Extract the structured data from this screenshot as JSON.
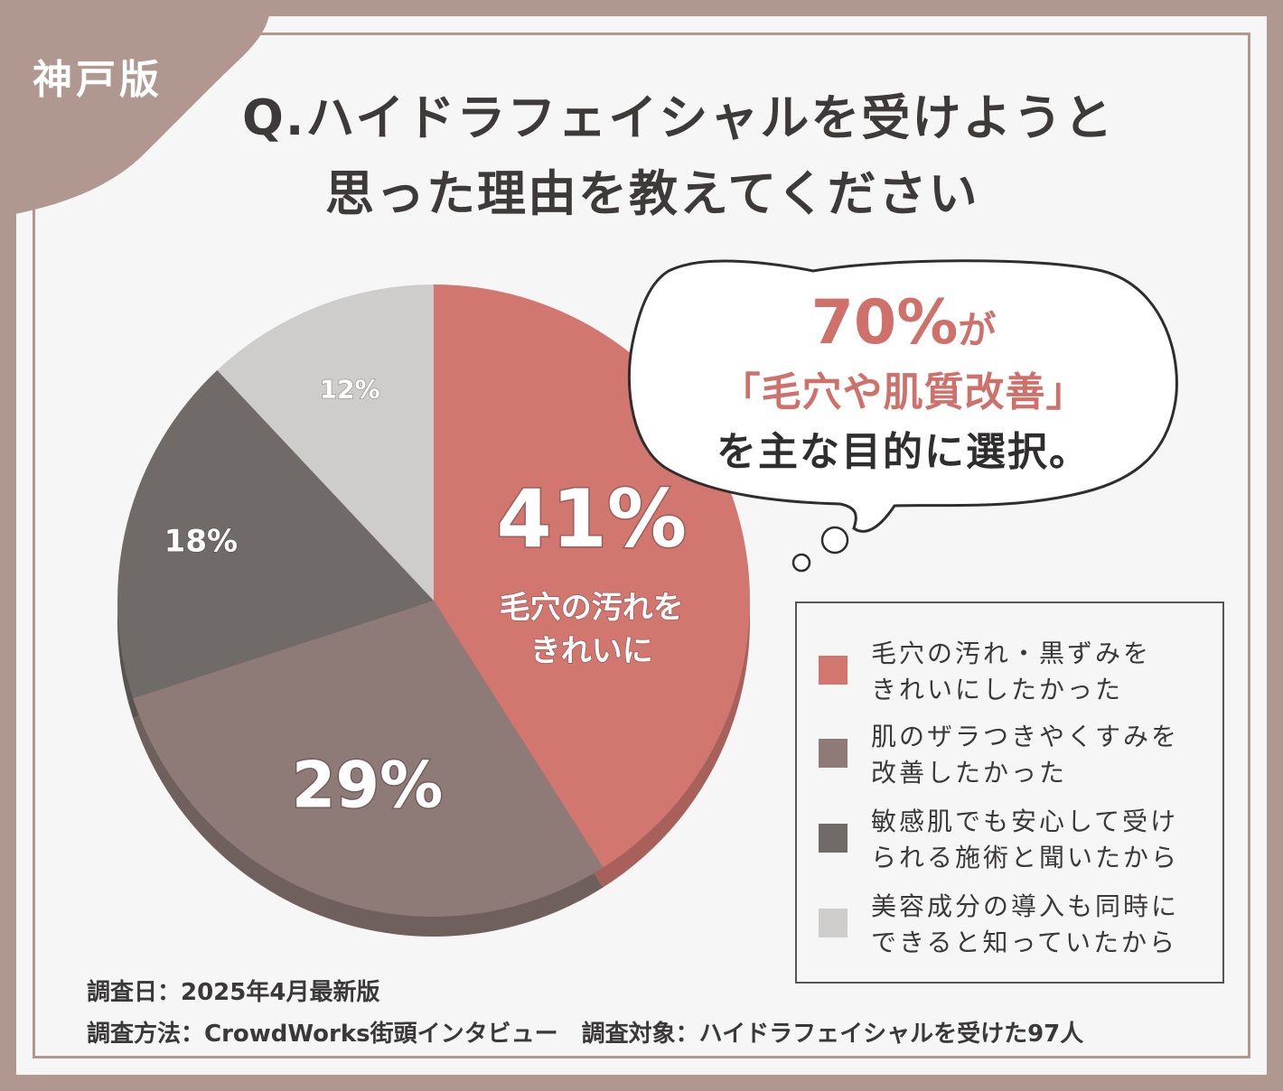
{
  "badge": "神戸版",
  "title": {
    "line1": "Q.ハイドラフェイシャルを受けようと",
    "line2": "思った理由を教えてください"
  },
  "callout": {
    "percent": "70%",
    "particle": "が",
    "highlight": "「毛穴や肌質改善」",
    "rest": "を主な目的に選択。"
  },
  "big_label": {
    "line1": "毛穴の汚れを",
    "line2": "きれいに"
  },
  "footer": {
    "date": "調査日：2025年4月最新版",
    "method": "調査方法：CrowdWorks街頭インタビュー　調査対象：ハイドラフェイシャルを受けた97人"
  },
  "colors": {
    "series": [
      "#d27670",
      "#8e7a77",
      "#706b69",
      "#cfcdcc"
    ],
    "accent": "#d0706a",
    "frame": "#b09891"
  },
  "chart_data": {
    "type": "pie",
    "title": "Q.ハイドラフェイシャルを受けようと思った理由を教えてください",
    "legend_position": "bottom-right",
    "slices": [
      {
        "label": "毛穴の汚れ・黒ずみをきれいにしたかった",
        "value": 41,
        "display": "41%"
      },
      {
        "label": "肌のザラつきやくすみを改善したかった",
        "value": 29,
        "display": "29%"
      },
      {
        "label": "敏感肌でも安心して受けられる施術と聞いたから",
        "value": 18,
        "display": "18%"
      },
      {
        "label": "美容成分の導入も同時にできると知っていたから",
        "value": 12,
        "display": "12%"
      }
    ]
  },
  "legend": [
    {
      "line1": "毛穴の汚れ・黒ずみを",
      "line2": "きれいにしたかった"
    },
    {
      "line1": "肌のザラつきやくすみを",
      "line2": "改善したかった"
    },
    {
      "line1": "敏感肌でも安心して受け",
      "line2": "られる施術と聞いたから"
    },
    {
      "line1": "美容成分の導入も同時に",
      "line2": "できると知っていたから"
    }
  ]
}
